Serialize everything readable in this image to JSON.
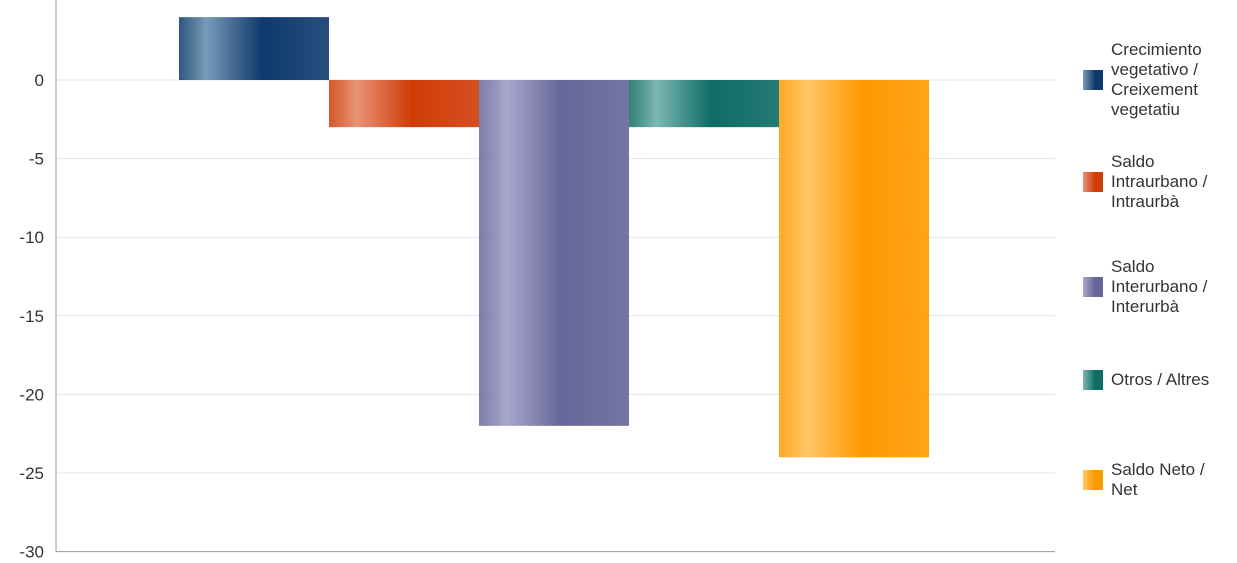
{
  "chart_data": {
    "type": "bar",
    "title": "",
    "xlabel": "",
    "ylabel": "",
    "ylim": [
      -30,
      4
    ],
    "yticks": [
      0,
      -5,
      -10,
      -15,
      -20,
      -25,
      -30
    ],
    "grid": true,
    "legend_position": "right",
    "series": [
      {
        "name": "Crecimiento vegetativo / Creixement vegetatiu",
        "value": 4,
        "color": "#0f3a6e",
        "color_light": "#7a9bb8"
      },
      {
        "name": "Saldo Intraurbano / Intraurbà",
        "value": -3,
        "color": "#d03c08",
        "color_light": "#e89378"
      },
      {
        "name": "Saldo Interurbano / Interurbà",
        "value": -22,
        "color": "#666699",
        "color_light": "#a8a8cc"
      },
      {
        "name": "Otros / Altres",
        "value": -3,
        "color": "#0e6b66",
        "color_light": "#7db8b3"
      },
      {
        "name": "Saldo Neto / Net",
        "value": -24,
        "color": "#ff9900",
        "color_light": "#ffc766"
      }
    ]
  }
}
